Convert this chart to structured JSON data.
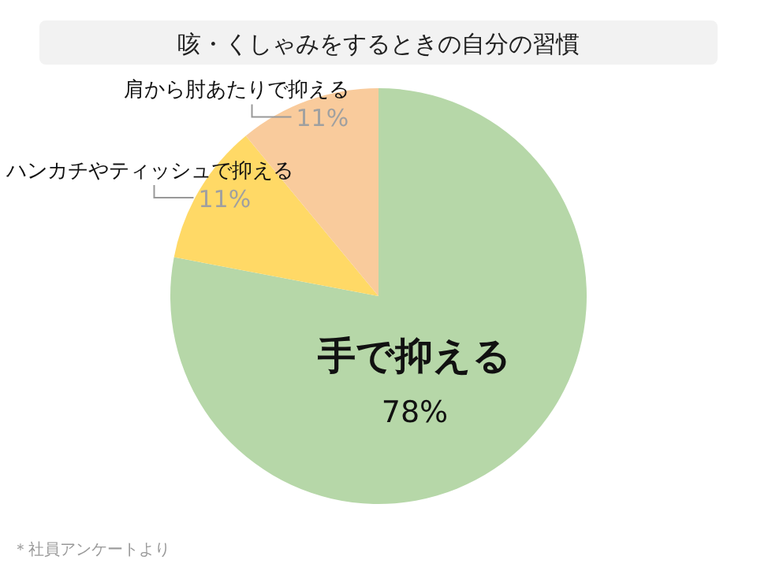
{
  "chart_data": {
    "type": "pie",
    "title": "咳・くしゃみをするときの自分の習慣",
    "categories": [
      "手で抑える",
      "ハンカチやティッシュで抑える",
      "肩から肘あたりで抑える"
    ],
    "values": [
      78,
      11,
      11
    ],
    "colors": [
      "#b6d7a8",
      "#ffd966",
      "#f9cb9c"
    ],
    "value_labels": [
      "78%",
      "11%",
      "11%"
    ],
    "annotations": [
      "＊社員アンケートより"
    ]
  }
}
